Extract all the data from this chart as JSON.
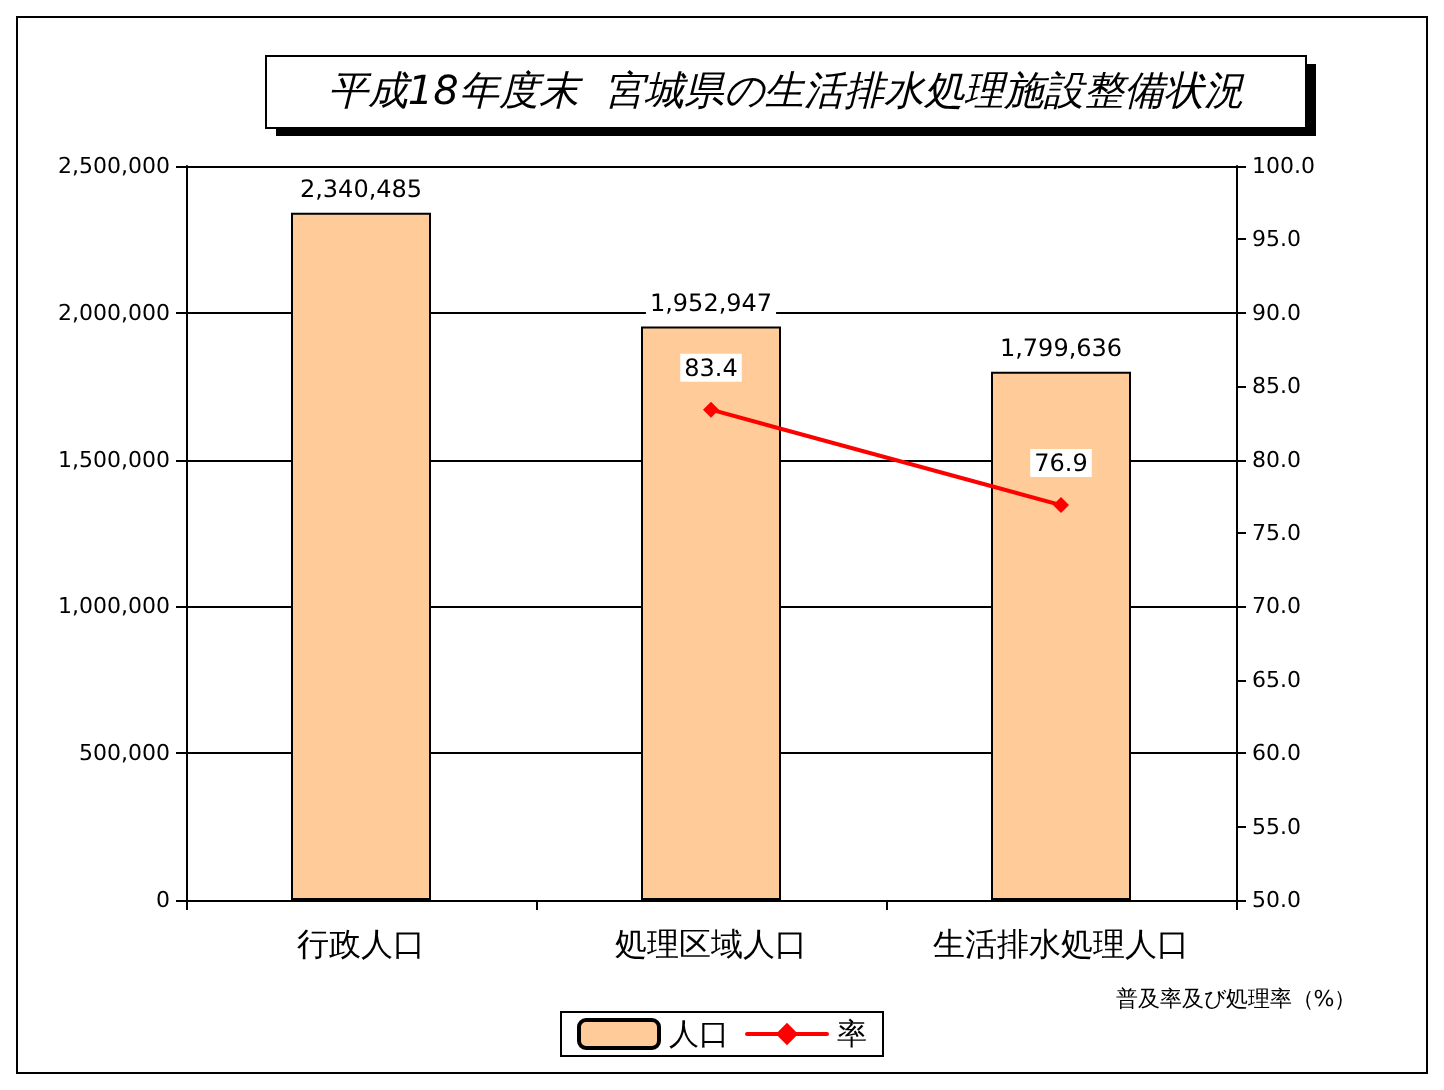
{
  "chart_data": {
    "type": "bar",
    "title": "平成18年度末  宮城県の生活排水処理施設整備状況",
    "categories": [
      "行政人口",
      "処理区域人口",
      "生活排水処理人口"
    ],
    "series": [
      {
        "name": "人口",
        "color": "#ffcc99",
        "values": [
          2340485,
          1952947,
          1799636
        ],
        "value_labels": [
          "2,340,485",
          "1,952,947",
          "1,799,636"
        ]
      },
      {
        "name": "率",
        "type": "line",
        "axis": "y2",
        "color": "#ff0000",
        "values": [
          null,
          83.4,
          76.9
        ],
        "value_labels": [
          null,
          "83.4",
          "76.9"
        ]
      }
    ],
    "y2label": "普及率及び処理率（%）",
    "ylim": [
      0,
      2500000
    ],
    "yticks": [
      {
        "value": 0,
        "label": "0"
      },
      {
        "value": 500000,
        "label": "500,000"
      },
      {
        "value": 1000000,
        "label": "1,000,000"
      },
      {
        "value": 1500000,
        "label": "1,500,000"
      },
      {
        "value": 2000000,
        "label": "2,000,000"
      },
      {
        "value": 2500000,
        "label": "2,500,000"
      }
    ],
    "y2lim": [
      50,
      100
    ],
    "y2ticks": [
      {
        "value": 50,
        "label": "50.0"
      },
      {
        "value": 55,
        "label": "55.0"
      },
      {
        "value": 60,
        "label": "60.0"
      },
      {
        "value": 65,
        "label": "65.0"
      },
      {
        "value": 70,
        "label": "70.0"
      },
      {
        "value": 75,
        "label": "75.0"
      },
      {
        "value": 80,
        "label": "80.0"
      },
      {
        "value": 85,
        "label": "85.0"
      },
      {
        "value": 90,
        "label": "90.0"
      },
      {
        "value": 95,
        "label": "95.0"
      },
      {
        "value": 100,
        "label": "100.0"
      }
    ],
    "grid": "y",
    "legend": "bottom",
    "marker": "diamond",
    "line_style": "solid"
  }
}
